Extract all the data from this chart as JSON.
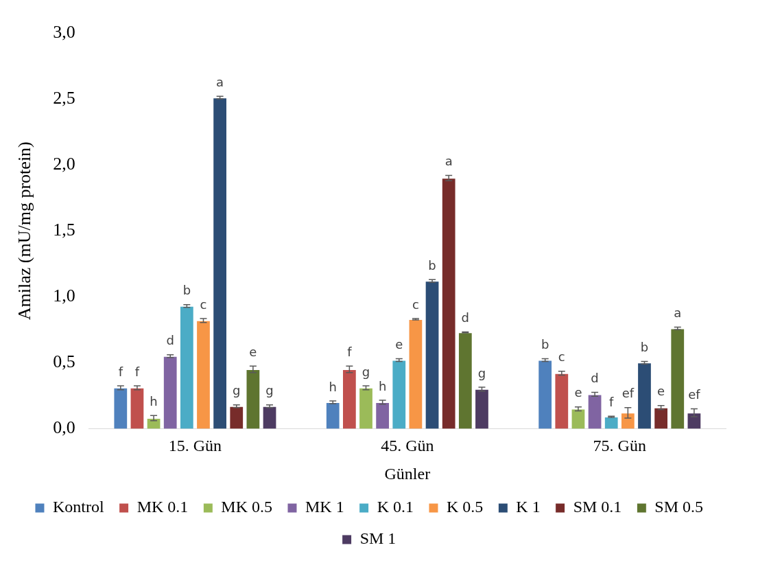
{
  "chart_data": {
    "type": "bar",
    "xlabel": "Günler",
    "ylabel": "Amilaz (mU/mg protein)",
    "categories": [
      "15. Gün",
      "45. Gün",
      "75. Gün"
    ],
    "ylim": [
      0,
      3.0
    ],
    "yticks": [
      {
        "value": 0,
        "label": "0,0"
      },
      {
        "value": 0.5,
        "label": "0,5"
      },
      {
        "value": 1,
        "label": "1,0"
      },
      {
        "value": 1.5,
        "label": "1,5"
      },
      {
        "value": 2,
        "label": "2,0"
      },
      {
        "value": 2.5,
        "label": "2,5"
      },
      {
        "value": 3,
        "label": "3,0"
      }
    ],
    "grid": false,
    "legend": "bottom",
    "series": [
      {
        "name": "Kontrol",
        "color": "#4f81bd",
        "values": [
          0.31,
          0.2,
          0.52
        ],
        "errors": [
          0.015,
          0.01,
          0.01
        ],
        "value_labels": [
          "f",
          "h",
          "b"
        ]
      },
      {
        "name": "MK 0.1",
        "color": "#c0504d",
        "values": [
          0.31,
          0.45,
          0.42
        ],
        "errors": [
          0.015,
          0.025,
          0.015
        ],
        "value_labels": [
          "f",
          "f",
          "c"
        ]
      },
      {
        "name": "MK 0.5",
        "color": "#9bbb59",
        "values": [
          0.08,
          0.31,
          0.15
        ],
        "errors": [
          0.02,
          0.015,
          0.015
        ],
        "value_labels": [
          "h",
          "g",
          "e"
        ]
      },
      {
        "name": "MK 1",
        "color": "#8064a2",
        "values": [
          0.55,
          0.2,
          0.26
        ],
        "errors": [
          0.01,
          0.015,
          0.015
        ],
        "value_labels": [
          "d",
          "h",
          "d"
        ]
      },
      {
        "name": "K 0.1",
        "color": "#4bacc6",
        "values": [
          0.93,
          0.52,
          0.09
        ],
        "errors": [
          0.01,
          0.01,
          0.005
        ],
        "value_labels": [
          "b",
          "e",
          "f"
        ]
      },
      {
        "name": "K 0.5",
        "color": "#f79646",
        "values": [
          0.82,
          0.83,
          0.12
        ],
        "errors": [
          0.015,
          0.005,
          0.04
        ],
        "value_labels": [
          "c",
          "c",
          "ef"
        ]
      },
      {
        "name": "K 1",
        "color": "#2c4d75",
        "values": [
          2.51,
          1.12,
          0.5
        ],
        "errors": [
          0.01,
          0.01,
          0.01
        ],
        "value_labels": [
          "a",
          "b",
          "b"
        ]
      },
      {
        "name": "SM 0.1",
        "color": "#772c2a",
        "values": [
          0.17,
          1.9,
          0.16
        ],
        "errors": [
          0.01,
          0.02,
          0.015
        ],
        "value_labels": [
          "g",
          "a",
          "e"
        ]
      },
      {
        "name": "SM 0.5",
        "color": "#5f7530",
        "values": [
          0.45,
          0.73,
          0.76
        ],
        "errors": [
          0.025,
          0.003,
          0.01
        ],
        "value_labels": [
          "e",
          "d",
          "a"
        ]
      },
      {
        "name": "SM 1",
        "color": "#4d3b62",
        "values": [
          0.17,
          0.3,
          0.12
        ],
        "errors": [
          0.01,
          0.015,
          0.03
        ],
        "value_labels": [
          "g",
          "g",
          "ef"
        ]
      }
    ]
  }
}
